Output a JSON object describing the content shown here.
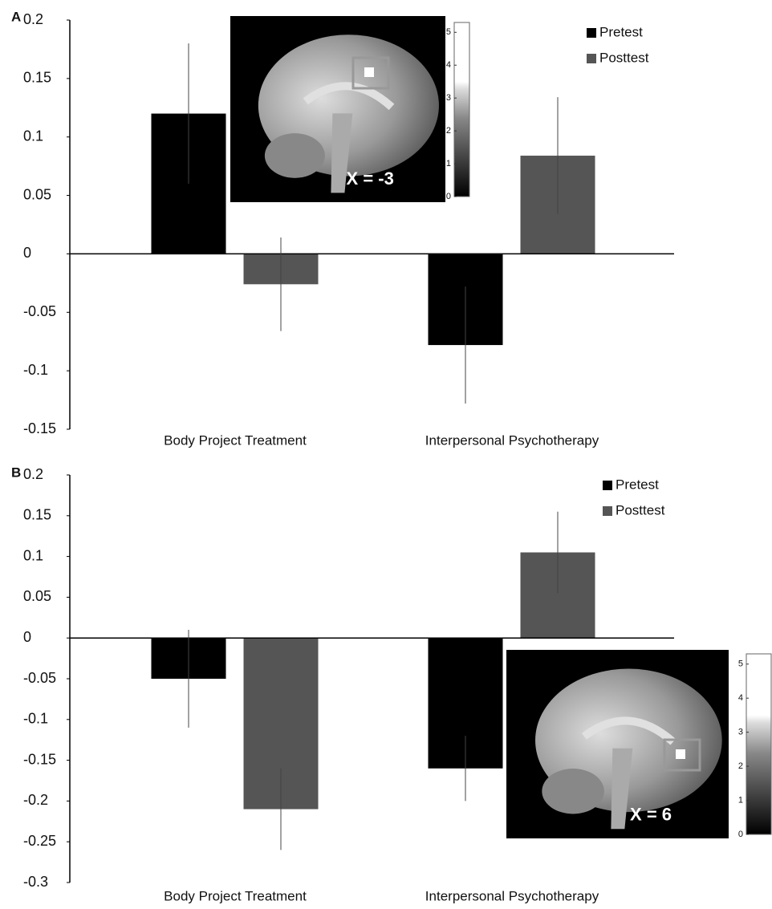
{
  "chart_data": [
    {
      "type": "bar",
      "panel_label": "A",
      "categories": [
        "Body Project Treatment",
        "Interpersonal Psychotherapy"
      ],
      "series": [
        {
          "name": "Pretest",
          "color": "#000000",
          "values": [
            0.12,
            -0.078
          ],
          "errors": [
            0.06,
            0.05
          ]
        },
        {
          "name": "Posttest",
          "color": "#555555",
          "values": [
            -0.026,
            0.084
          ],
          "errors": [
            0.04,
            0.05
          ]
        }
      ],
      "ylim": [
        -0.15,
        0.2
      ],
      "yticks": [
        0.2,
        0.15,
        0.1,
        0.05,
        0,
        -0.05,
        -0.1,
        -0.15
      ],
      "legend": "top-right",
      "inset": {
        "label": "X = -3",
        "colorbar_lim": [
          0,
          5.3
        ],
        "colorbar_ticks": [
          0,
          1,
          2,
          3,
          4,
          5
        ]
      }
    },
    {
      "type": "bar",
      "panel_label": "B",
      "categories": [
        "Body Project Treatment",
        "Interpersonal Psychotherapy"
      ],
      "series": [
        {
          "name": "Pretest",
          "color": "#000000",
          "values": [
            -0.05,
            -0.16
          ],
          "errors": [
            0.06,
            0.04
          ]
        },
        {
          "name": "Posttest",
          "color": "#555555",
          "values": [
            -0.21,
            0.105
          ],
          "errors": [
            0.05,
            0.05
          ]
        }
      ],
      "ylim": [
        -0.3,
        0.2
      ],
      "yticks": [
        0.2,
        0.15,
        0.1,
        0.05,
        0,
        -0.05,
        -0.1,
        -0.15,
        -0.2,
        -0.25,
        -0.3
      ],
      "legend": "top-right",
      "inset": {
        "label": "X = 6",
        "colorbar_lim": [
          0,
          5.3
        ],
        "colorbar_ticks": [
          0,
          1,
          2,
          3,
          4,
          5
        ]
      }
    }
  ]
}
